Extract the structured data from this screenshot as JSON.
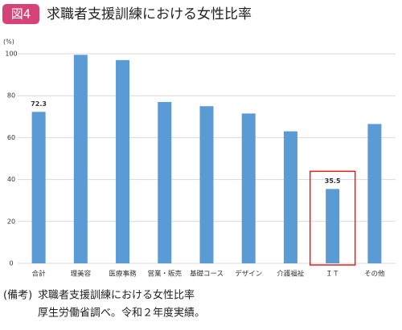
{
  "badge": "図4",
  "chart_data": {
    "type": "bar",
    "title": "求職者支援訓練における女性比率",
    "y_unit": "(%)",
    "categories": [
      "合計",
      "理美容",
      "医療事務",
      "営業・販売",
      "基礎コース",
      "デザイン",
      "介護福祉",
      "ＩＴ",
      "その他"
    ],
    "values": [
      72.3,
      99.5,
      97,
      77,
      75,
      71.5,
      63,
      35.5,
      66.5
    ],
    "value_labels": [
      "72.3",
      null,
      null,
      null,
      null,
      null,
      null,
      "35.5",
      null
    ],
    "color": "#5b9bd5",
    "highlight_index": 7,
    "highlight_color": "#e02020",
    "ylim": [
      0,
      100
    ],
    "yticks": [
      0,
      20,
      40,
      60,
      80,
      100
    ],
    "grid": true
  },
  "note": {
    "label": "(備考)",
    "lines": [
      "求職者支援訓練における女性比率",
      "厚生労働省調べ。令和２年度実績。"
    ]
  }
}
